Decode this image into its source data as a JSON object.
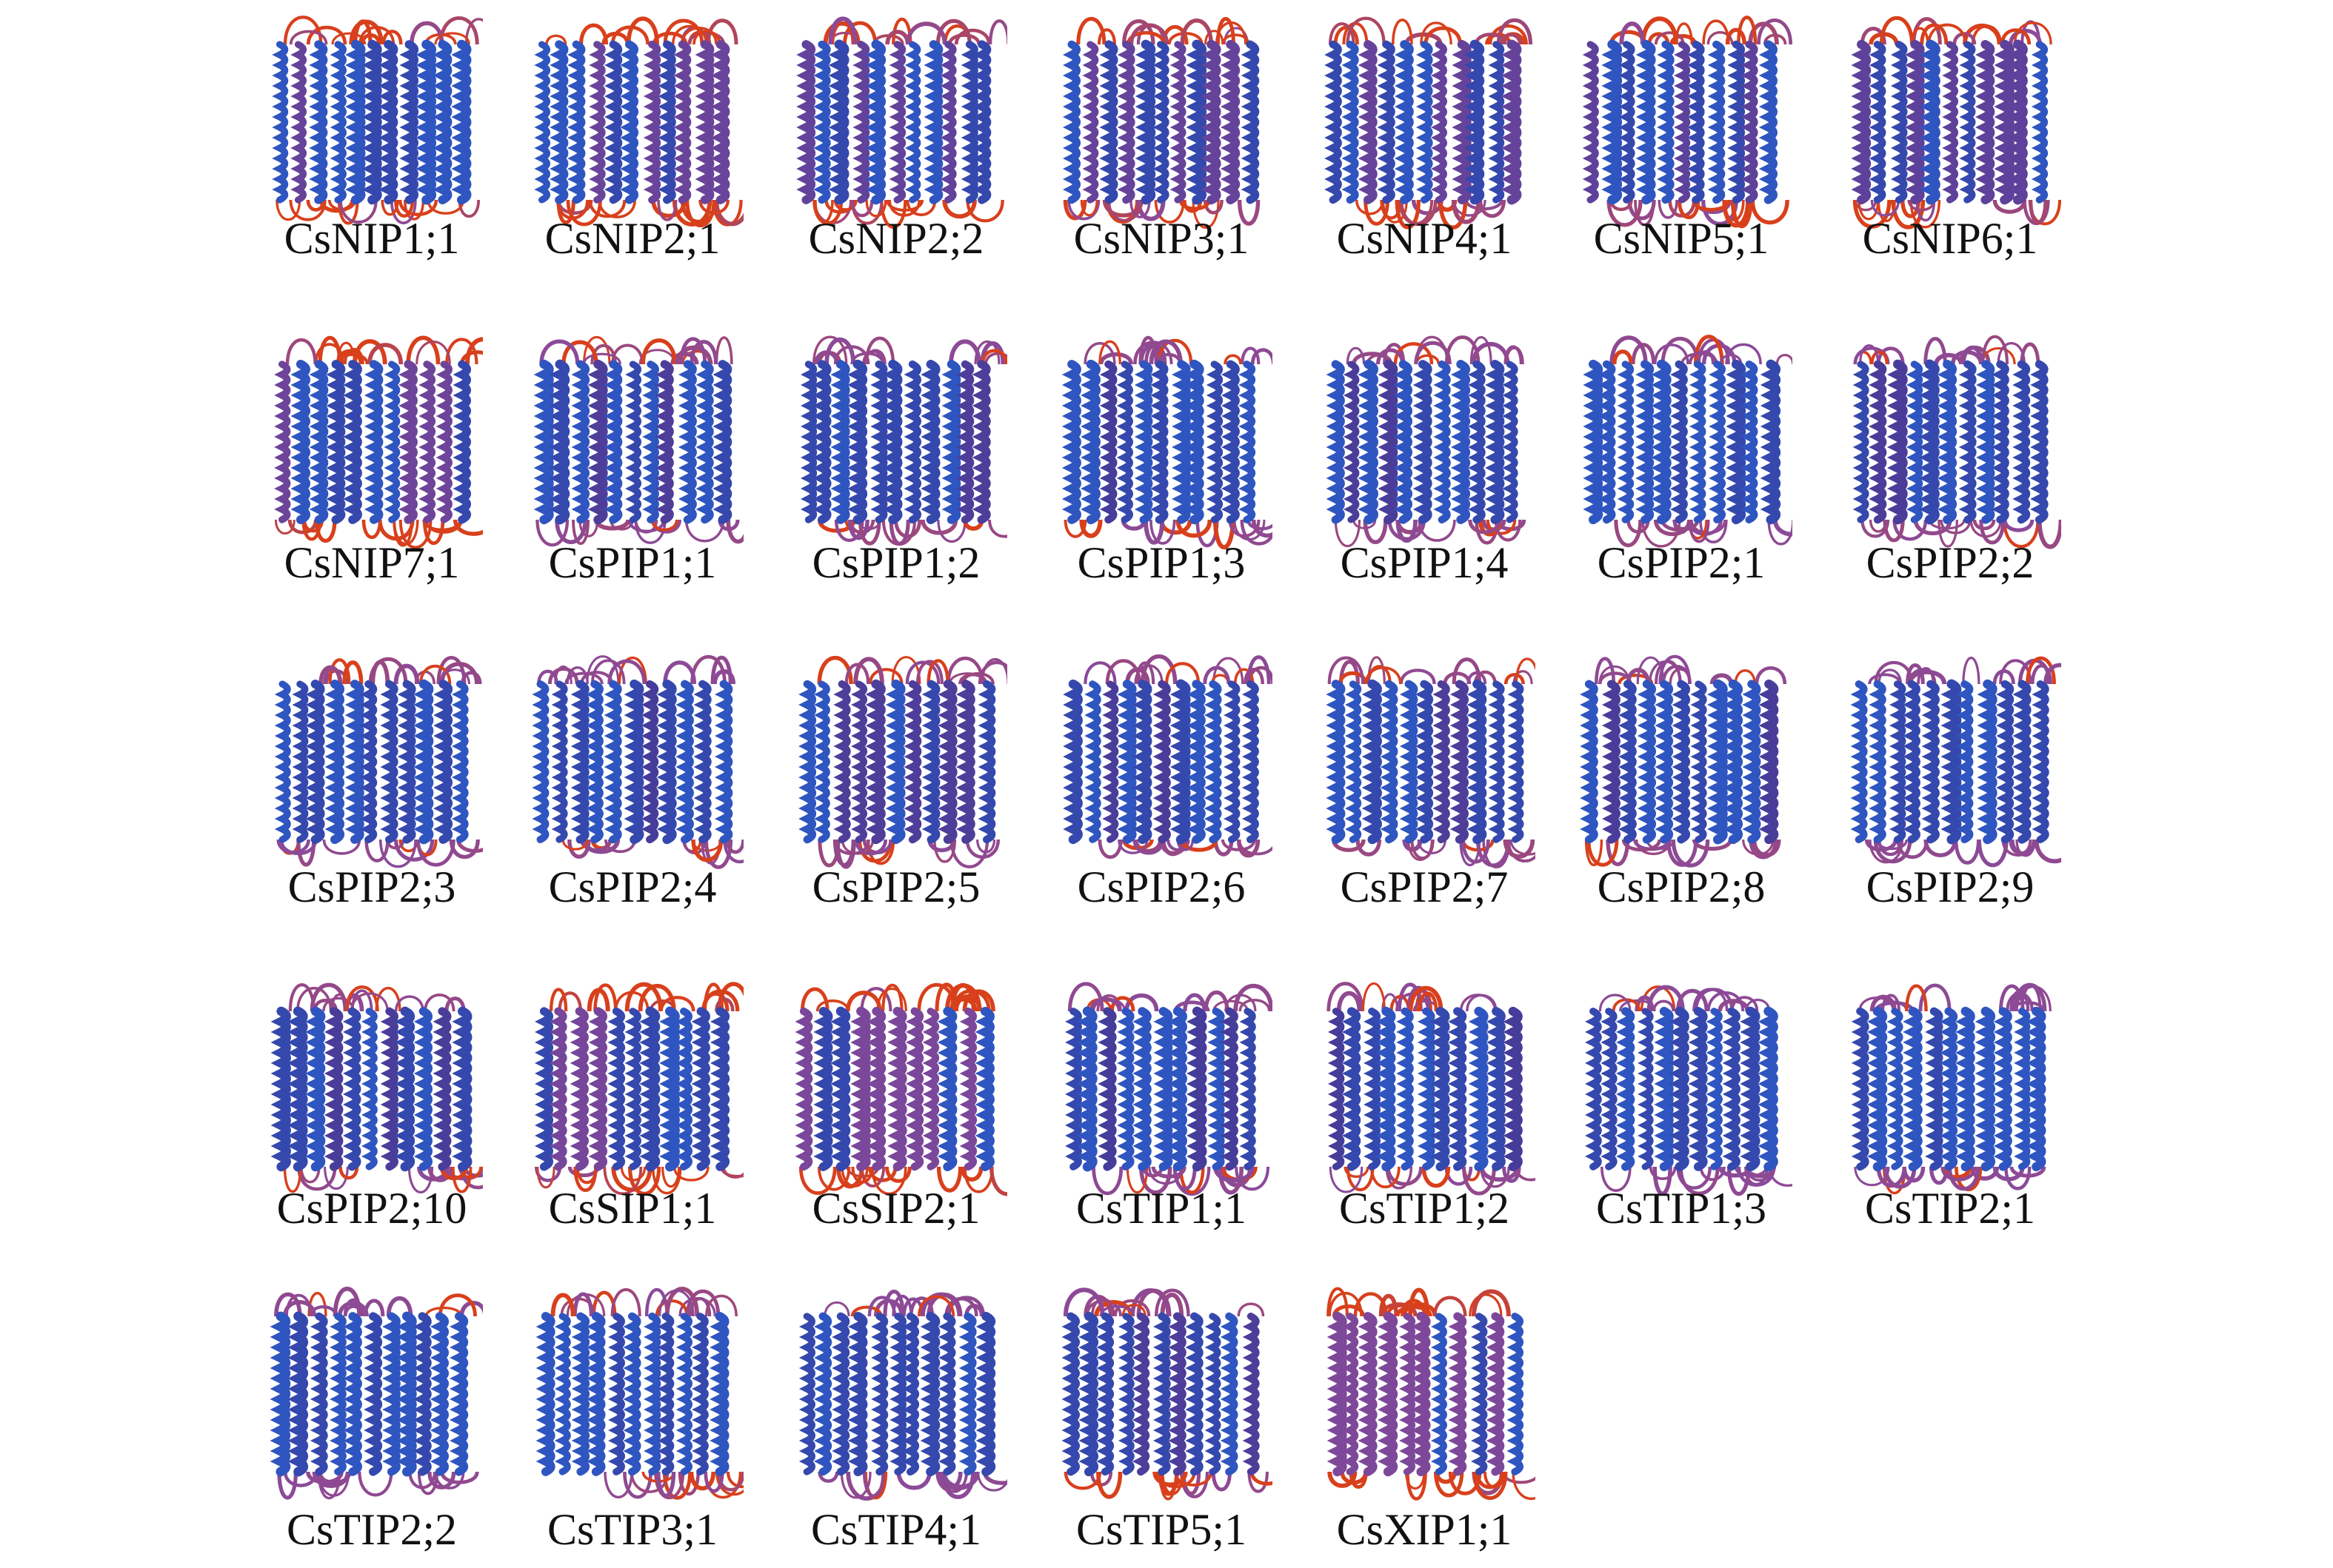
{
  "figure": {
    "structures": [
      {
        "label": "CsNIP1;1"
      },
      {
        "label": "CsNIP2;1"
      },
      {
        "label": "CsNIP2;2"
      },
      {
        "label": "CsNIP3;1"
      },
      {
        "label": "CsNIP4;1"
      },
      {
        "label": "CsNIP5;1"
      },
      {
        "label": "CsNIP6;1"
      },
      {
        "label": "CsNIP7;1"
      },
      {
        "label": "CsPIP1;1"
      },
      {
        "label": "CsPIP1;2"
      },
      {
        "label": "CsPIP1;3"
      },
      {
        "label": "CsPIP1;4"
      },
      {
        "label": "CsPIP2;1"
      },
      {
        "label": "CsPIP2;2"
      },
      {
        "label": "CsPIP2;3"
      },
      {
        "label": "CsPIP2;4"
      },
      {
        "label": "CsPIP2;5"
      },
      {
        "label": "CsPIP2;6"
      },
      {
        "label": "CsPIP2;7"
      },
      {
        "label": "CsPIP2;8"
      },
      {
        "label": "CsPIP2;9"
      },
      {
        "label": "CsPIP2;10"
      },
      {
        "label": "CsSIP1;1"
      },
      {
        "label": "CsSIP2;1"
      },
      {
        "label": "CsTIP1;1"
      },
      {
        "label": "CsTIP1;2"
      },
      {
        "label": "CsTIP1;3"
      },
      {
        "label": "CsTIP2;1"
      },
      {
        "label": "CsTIP2;2"
      },
      {
        "label": "CsTIP3;1"
      },
      {
        "label": "CsTIP4;1"
      },
      {
        "label": "CsTIP5;1"
      },
      {
        "label": "CsXIP1;1"
      }
    ],
    "colors": {
      "helix": "#2f55c0",
      "helix_dark": "#3a3a9a",
      "loop": "#8a4a9a",
      "loop_red": "#d8401c"
    }
  }
}
